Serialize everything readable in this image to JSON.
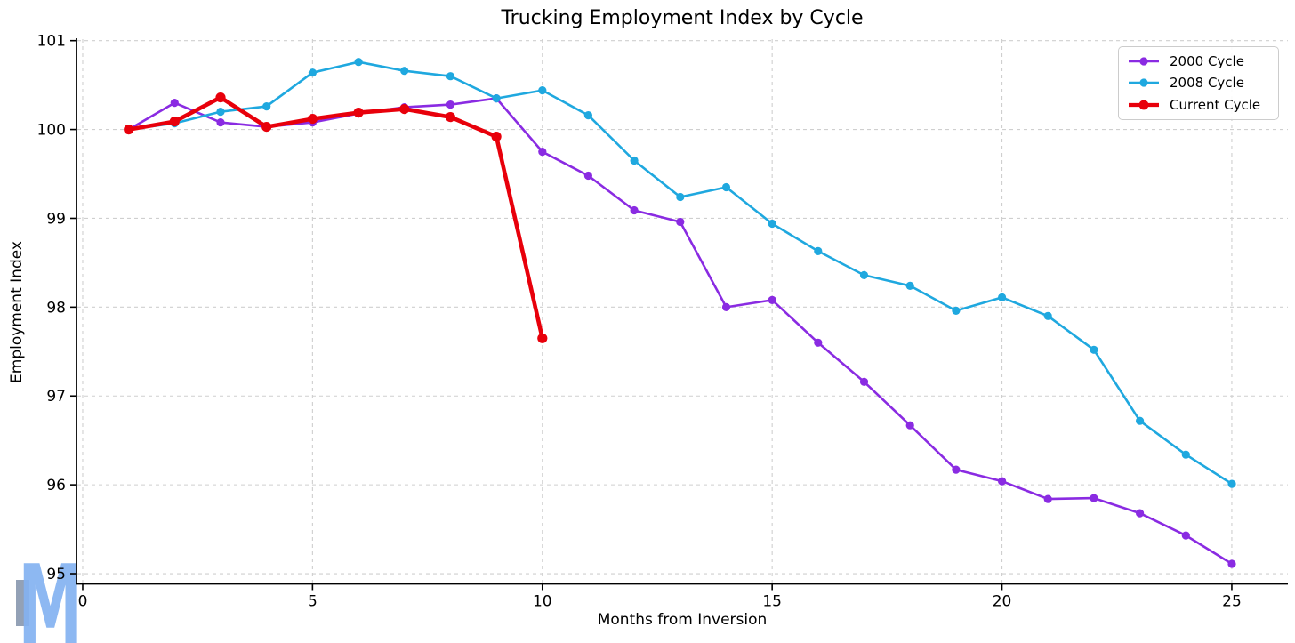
{
  "chart_data": {
    "type": "line",
    "title": "Trucking Employment Index by Cycle",
    "xlabel": "Months from Inversion",
    "ylabel": "Employment Index",
    "x": [
      1,
      2,
      3,
      4,
      5,
      6,
      7,
      8,
      9,
      10,
      11,
      12,
      13,
      14,
      15,
      16,
      17,
      18,
      19,
      20,
      21,
      22,
      23,
      24,
      25
    ],
    "xticks": [
      0,
      5,
      10,
      15,
      20,
      25
    ],
    "yticks": [
      95,
      96,
      97,
      98,
      99,
      100,
      101
    ],
    "xlim": [
      -0.135,
      26.22
    ],
    "ylim": [
      94.885,
      101.017
    ],
    "grid": true,
    "grid_style": "dashed",
    "legend_position": "upper right",
    "series": [
      {
        "name": "2000 Cycle",
        "color": "#8A2BE2",
        "line_width": 2.6,
        "marker_radius": 4.6,
        "values": [
          100.0,
          100.3,
          100.08,
          100.03,
          100.08,
          100.18,
          100.25,
          100.28,
          100.35,
          99.75,
          99.48,
          99.09,
          98.96,
          98.0,
          98.08,
          97.6,
          97.16,
          96.67,
          96.17,
          96.04,
          95.84,
          95.85,
          95.68,
          95.43,
          95.11
        ]
      },
      {
        "name": "2008 Cycle",
        "color": "#1FA8DF",
        "line_width": 2.6,
        "marker_radius": 4.6,
        "values": [
          100.0,
          100.07,
          100.2,
          100.26,
          100.64,
          100.76,
          100.66,
          100.6,
          100.35,
          100.44,
          100.16,
          99.65,
          99.24,
          99.35,
          98.94,
          98.63,
          98.36,
          98.24,
          97.96,
          98.11,
          97.9,
          97.52,
          96.72,
          96.34,
          96.01
        ]
      },
      {
        "name": "Current Cycle",
        "color": "#E8000B",
        "line_width": 4.6,
        "marker_radius": 5.6,
        "values": [
          100.0,
          100.09,
          100.36,
          100.03,
          100.12,
          100.19,
          100.23,
          100.14,
          99.92,
          97.65
        ]
      }
    ]
  },
  "watermark": {
    "letter": "M"
  },
  "style_colors": {
    "grid": "#cfcfcf",
    "spine": "#000000",
    "tick_text": "#000000"
  }
}
